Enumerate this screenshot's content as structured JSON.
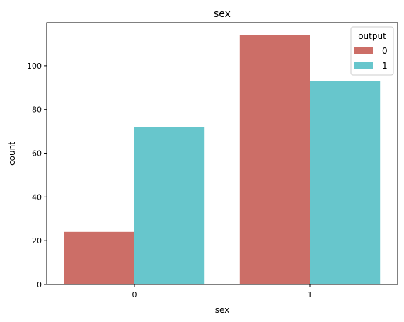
{
  "chart_data": {
    "type": "bar",
    "title": "sex",
    "xlabel": "sex",
    "ylabel": "count",
    "categories": [
      "0",
      "1"
    ],
    "series": [
      {
        "name": "0",
        "values": [
          24,
          114
        ],
        "color": "#cc6e67"
      },
      {
        "name": "1",
        "values": [
          72,
          93
        ],
        "color": "#67c6cc"
      }
    ],
    "ylim": [
      0,
      119.7
    ],
    "yticks": [
      0,
      20,
      40,
      60,
      80,
      100
    ],
    "legend": {
      "title": "output",
      "placement": "top-right"
    },
    "grid": false
  }
}
